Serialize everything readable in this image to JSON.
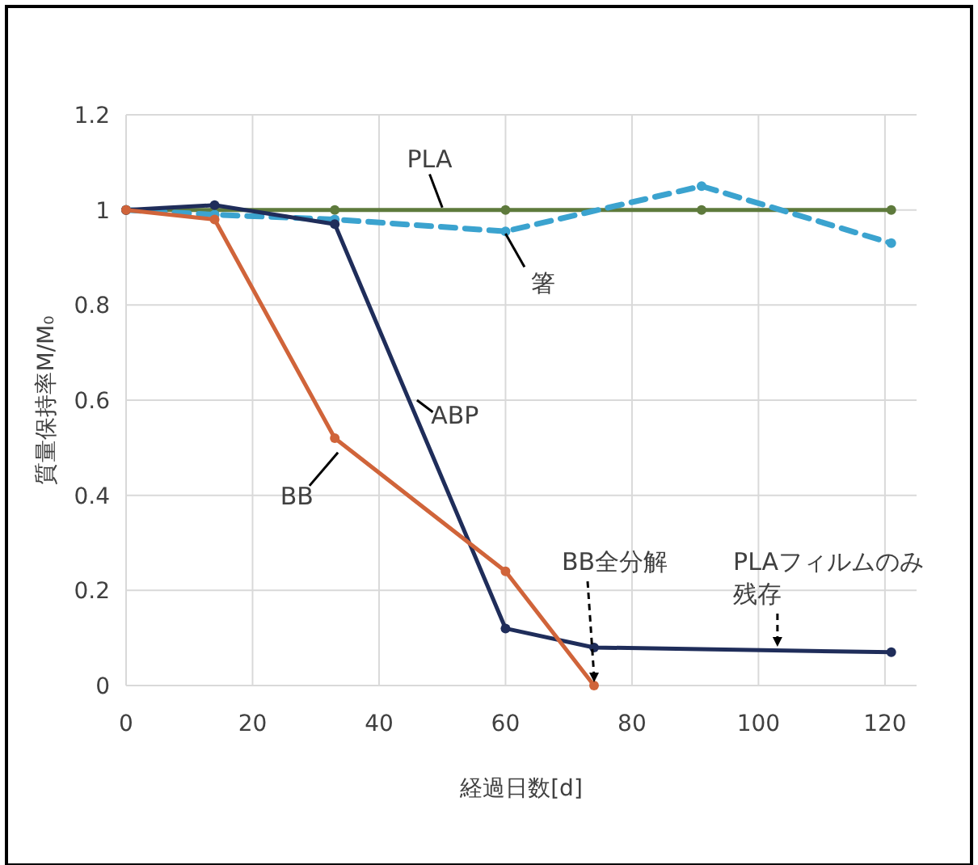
{
  "chart_data": {
    "type": "line",
    "xlabel": "経過日数[d]",
    "ylabel": "質量保持率M/M₀",
    "xlim": [
      0,
      125
    ],
    "xticks": [
      0,
      20,
      40,
      60,
      80,
      100,
      120
    ],
    "ylim": [
      0,
      1.2
    ],
    "yticks": [
      0,
      0.2,
      0.4,
      0.6,
      0.8,
      1,
      1.2
    ],
    "grid": true,
    "marker": "circle",
    "line_style": "solid",
    "series": [
      {
        "name": "PLA",
        "color": "#5e7a3c",
        "x": [
          0,
          14,
          33,
          60,
          91,
          121
        ],
        "values": [
          1,
          1,
          1,
          1,
          1,
          1
        ]
      },
      {
        "name": "箸",
        "color": "#3ba3cf",
        "line_style": "dashed",
        "x": [
          0,
          14,
          33,
          60,
          91,
          121
        ],
        "values": [
          1,
          0.99,
          0.98,
          0.955,
          1.05,
          0.93
        ]
      },
      {
        "name": "ABP",
        "color": "#1f2d5a",
        "x": [
          0,
          14,
          33,
          60,
          74,
          121
        ],
        "values": [
          1,
          1.01,
          0.97,
          0.12,
          0.08,
          0.07
        ]
      },
      {
        "name": "BB",
        "color": "#d0643a",
        "x": [
          0,
          14,
          33,
          60,
          74
        ],
        "values": [
          1,
          0.98,
          0.52,
          0.24,
          0
        ]
      }
    ],
    "annotations": [
      {
        "text": "BB全分解",
        "x": 74,
        "y": 0
      },
      {
        "text": "PLAフィルムのみ残存",
        "x": 103,
        "y": 0.075
      }
    ]
  }
}
